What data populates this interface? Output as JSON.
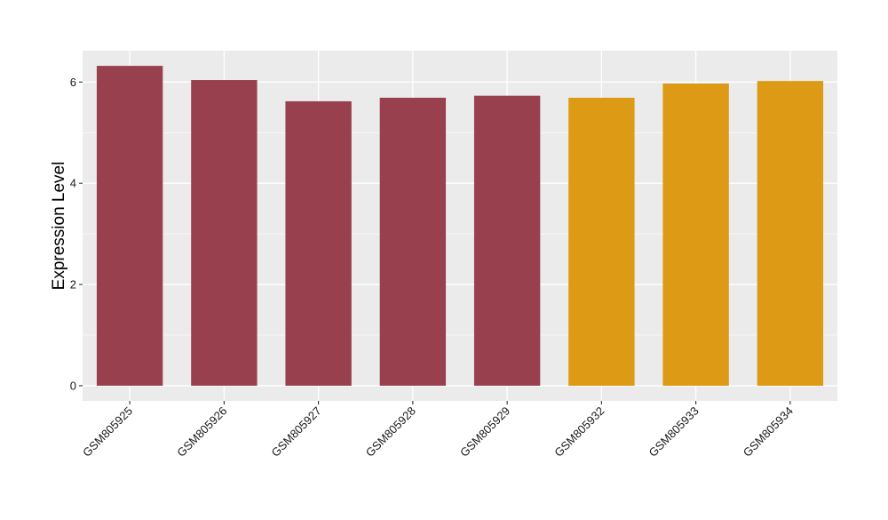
{
  "chart_data": {
    "type": "bar",
    "title": "",
    "xlabel": "",
    "ylabel": "Expression Level",
    "categories": [
      "GSM805925",
      "GSM805926",
      "GSM805927",
      "GSM805928",
      "GSM805929",
      "GSM805932",
      "GSM805933",
      "GSM805934"
    ],
    "values": [
      6.32,
      6.04,
      5.62,
      5.69,
      5.73,
      5.69,
      5.97,
      6.02
    ],
    "bar_colors": [
      "#99404F",
      "#99404F",
      "#99404F",
      "#99404F",
      "#99404F",
      "#DD9A14",
      "#DD9A14",
      "#DD9A14"
    ],
    "ylim": [
      -0.3,
      6.62
    ],
    "yticks": [
      0,
      2,
      4,
      6
    ],
    "grid": true,
    "legend": "none",
    "panel_background": "#EBEBEB",
    "grid_color": "#FFFFFF"
  }
}
